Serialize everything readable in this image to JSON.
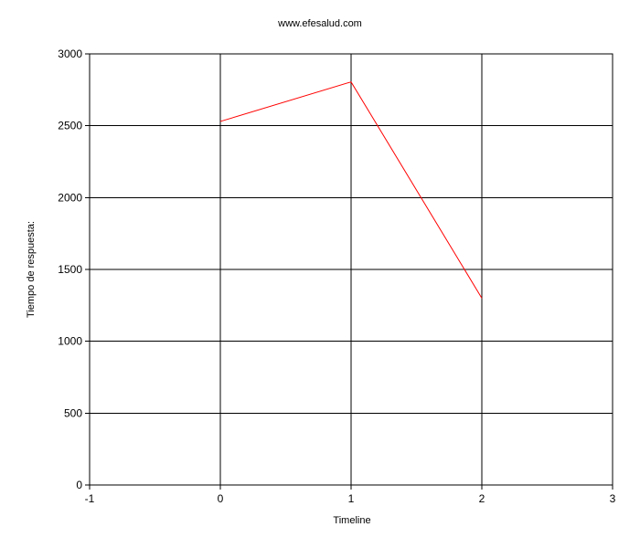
{
  "chart_data": {
    "type": "line",
    "title": "www.efesalud.com",
    "xlabel": "Timeline",
    "ylabel": "Tiempo de respuesta:",
    "xlim": [
      -1,
      3
    ],
    "ylim": [
      0,
      3000
    ],
    "x_ticks": [
      "-1",
      "0",
      "1",
      "2",
      "3"
    ],
    "y_ticks": [
      "0",
      "500",
      "1000",
      "1500",
      "2000",
      "2500",
      "3000"
    ],
    "grid": true,
    "series": [
      {
        "color": "#ff0000",
        "x": [
          0,
          1,
          2
        ],
        "y": [
          2530,
          2805,
          1300
        ]
      }
    ]
  }
}
